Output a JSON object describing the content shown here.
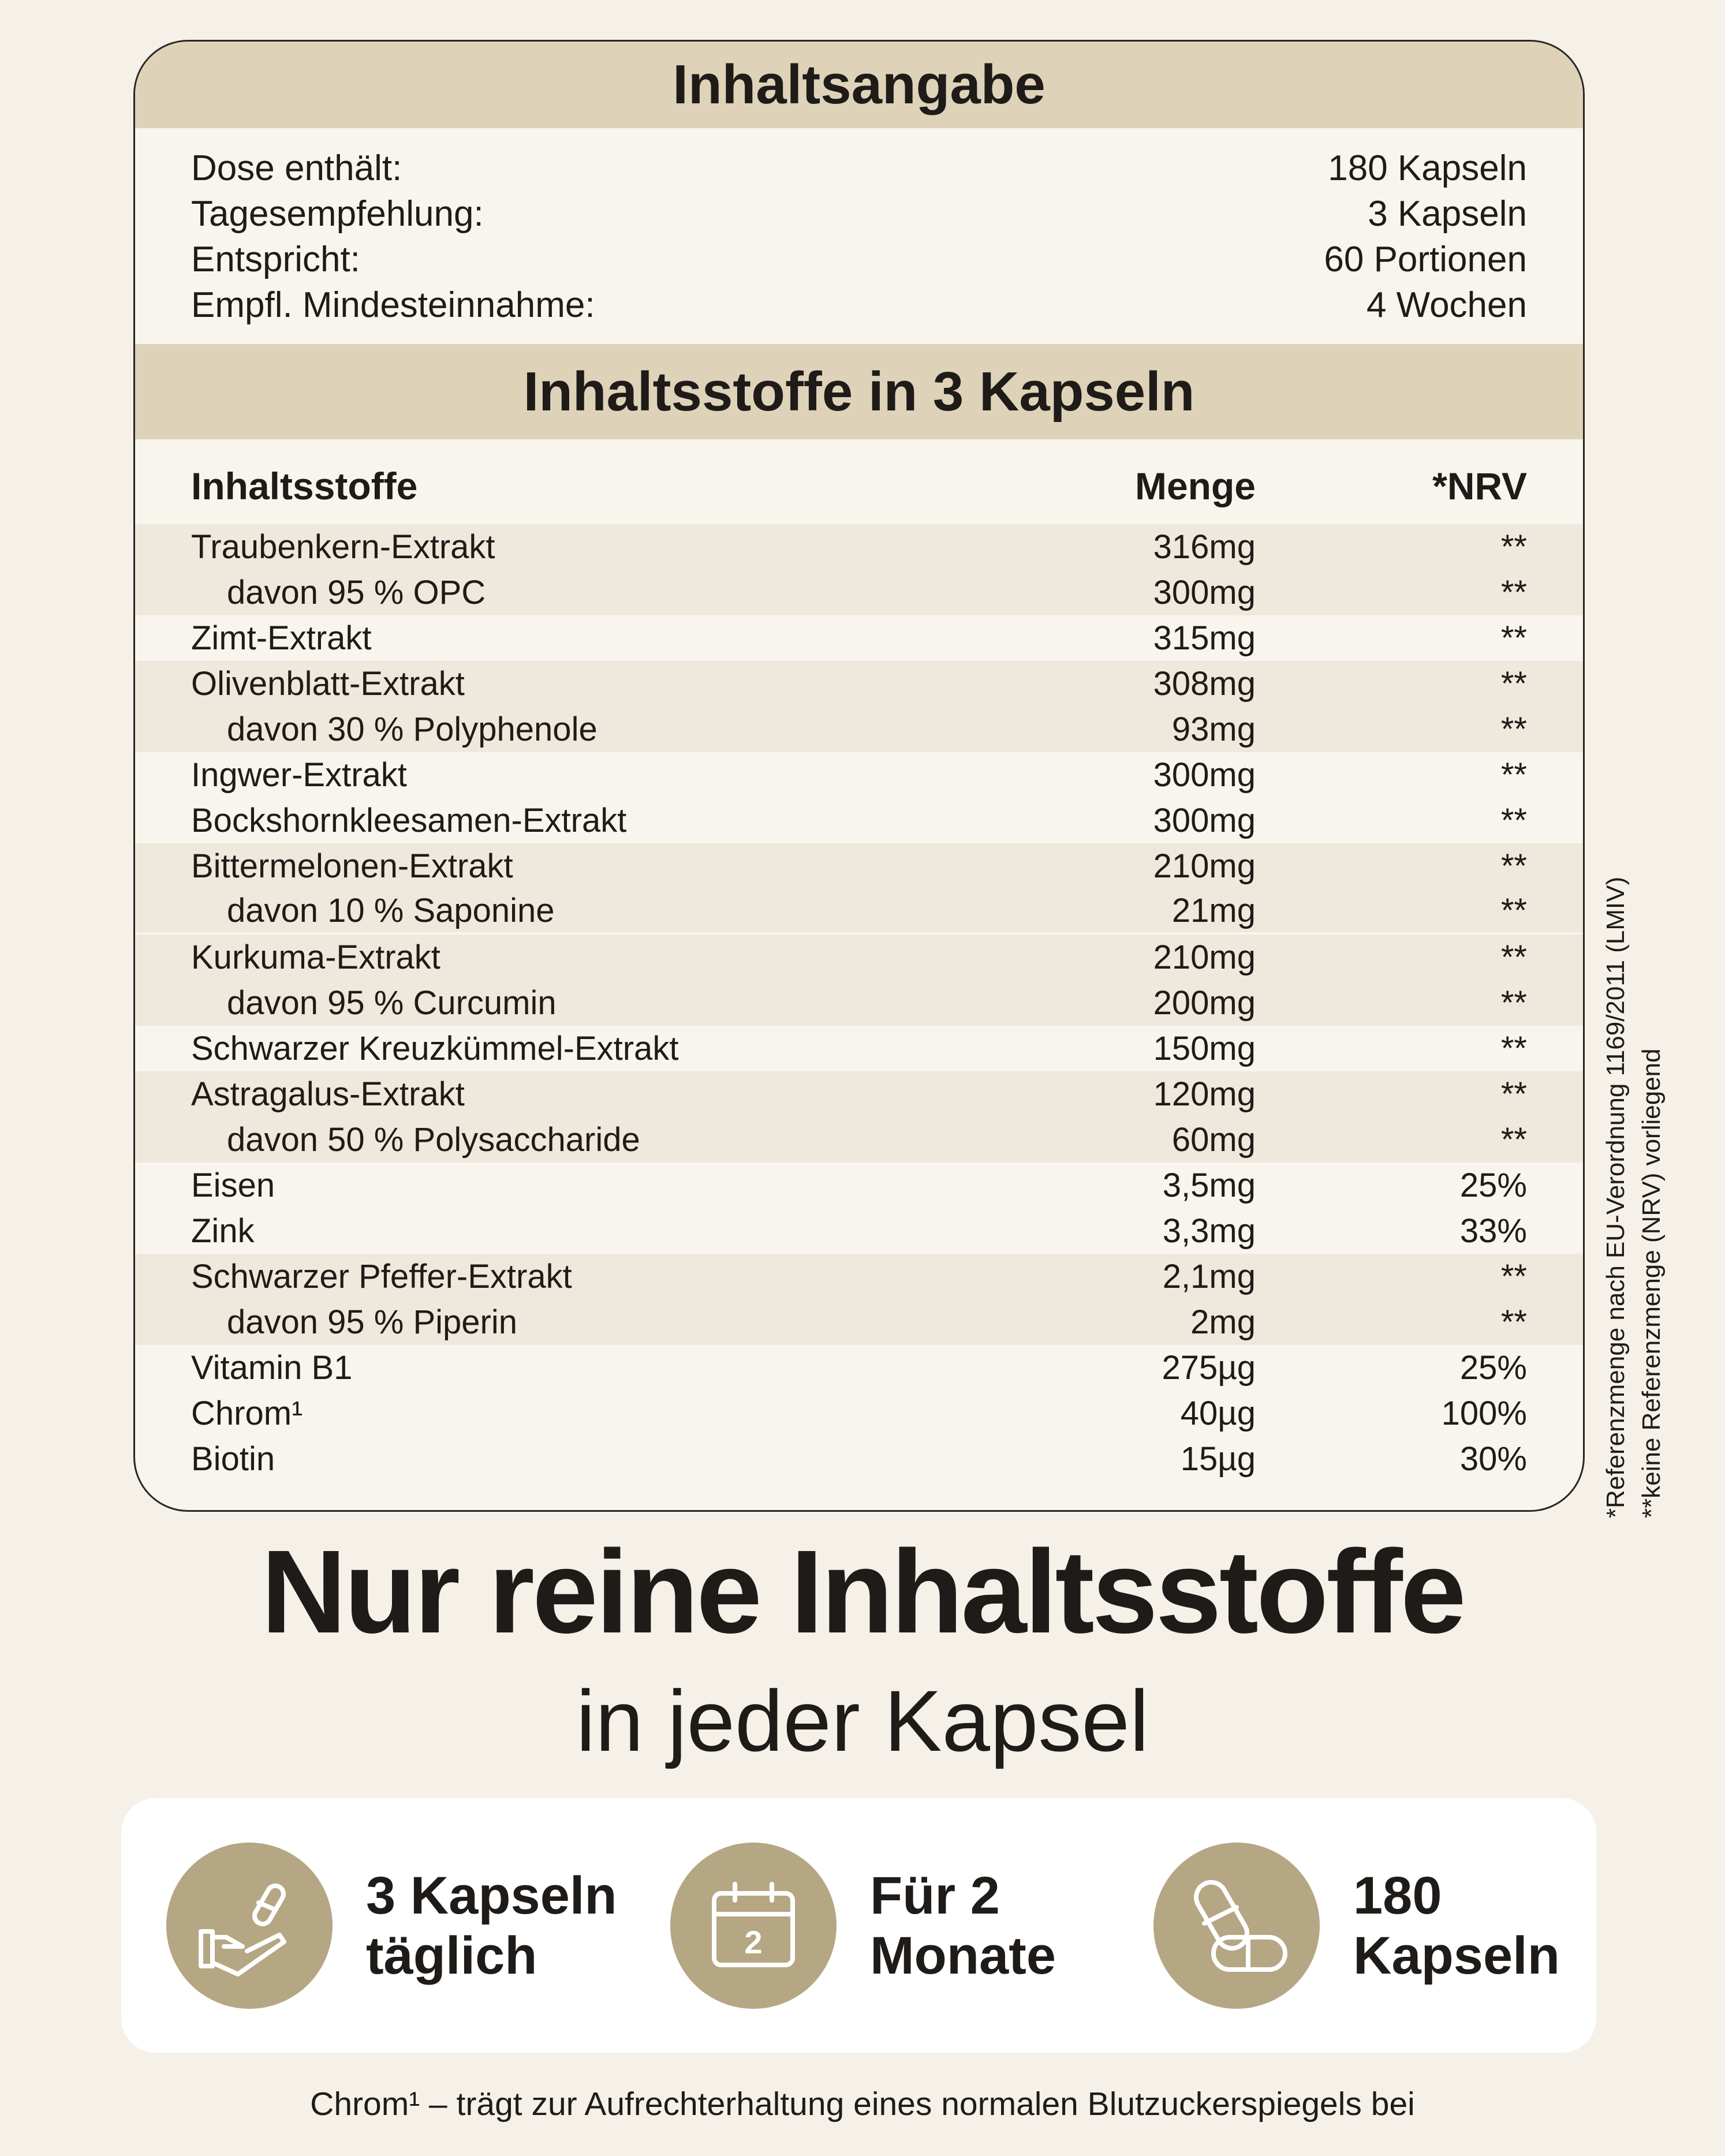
{
  "header": {
    "title": "Inhaltsangabe"
  },
  "info": [
    {
      "label": "Dose enthält:",
      "value": "180 Kapseln"
    },
    {
      "label": "Tagesempfehlung:",
      "value": "3 Kapseln"
    },
    {
      "label": "Entspricht:",
      "value": "60 Portionen"
    },
    {
      "label": "Empfl. Mindesteinnahme:",
      "value": "4 Wochen"
    }
  ],
  "section": {
    "title": "Inhaltsstoffe in 3 Kapseln"
  },
  "table": {
    "headers": {
      "name": "Inhaltsstoffe",
      "amount": "Menge",
      "nrv": "*NRV"
    },
    "rows": [
      {
        "name": "Traubenkern-Extrakt",
        "amount": "316mg",
        "nrv": "**",
        "sub": false,
        "shade": true
      },
      {
        "name": "davon 95 % OPC",
        "amount": "300mg",
        "nrv": "**",
        "sub": true,
        "shade": true
      },
      {
        "name": "Zimt-Extrakt",
        "amount": "315mg",
        "nrv": "**",
        "sub": false,
        "shade": false
      },
      {
        "name": "Olivenblatt-Extrakt",
        "amount": "308mg",
        "nrv": "**",
        "sub": false,
        "shade": true
      },
      {
        "name": "davon 30 % Polyphenole",
        "amount": "93mg",
        "nrv": "**",
        "sub": true,
        "shade": true
      },
      {
        "name": "Ingwer-Extrakt",
        "amount": "300mg",
        "nrv": "**",
        "sub": false,
        "shade": false
      },
      {
        "name": "Bockshornkleesamen-Extrakt",
        "amount": "300mg",
        "nrv": "**",
        "sub": false,
        "shade": false
      },
      {
        "name": "Bittermelonen-Extrakt",
        "amount": "210mg",
        "nrv": "**",
        "sub": false,
        "shade": true
      },
      {
        "name": "davon 10 % Saponine",
        "amount": "21mg",
        "nrv": "**",
        "sub": true,
        "shade": true
      },
      {
        "name": "Kurkuma-Extrakt",
        "amount": "210mg",
        "nrv": "**",
        "sub": false,
        "shade": true
      },
      {
        "name": "davon 95 % Curcumin",
        "amount": "200mg",
        "nrv": "**",
        "sub": true,
        "shade": true
      },
      {
        "name": "Schwarzer Kreuzkümmel-Extrakt",
        "amount": "150mg",
        "nrv": "**",
        "sub": false,
        "shade": false
      },
      {
        "name": "Astragalus-Extrakt",
        "amount": "120mg",
        "nrv": "**",
        "sub": false,
        "shade": true
      },
      {
        "name": "davon 50 % Polysaccharide",
        "amount": "60mg",
        "nrv": "**",
        "sub": true,
        "shade": true
      },
      {
        "name": "Eisen",
        "amount": "3,5mg",
        "nrv": "25%",
        "sub": false,
        "shade": false
      },
      {
        "name": "Zink",
        "amount": "3,3mg",
        "nrv": "33%",
        "sub": false,
        "shade": false
      },
      {
        "name": "Schwarzer Pfeffer-Extrakt",
        "amount": "2,1mg",
        "nrv": "**",
        "sub": false,
        "shade": true
      },
      {
        "name": "davon 95 % Piperin",
        "amount": "2mg",
        "nrv": "**",
        "sub": true,
        "shade": true
      },
      {
        "name": "Vitamin B1",
        "amount": "275µg",
        "nrv": "25%",
        "sub": false,
        "shade": false
      },
      {
        "name": "Chrom¹",
        "amount": "40µg",
        "nrv": "100%",
        "sub": false,
        "shade": false
      },
      {
        "name": "Biotin",
        "amount": "15µg",
        "nrv": "30%",
        "sub": false,
        "shade": false
      }
    ]
  },
  "footnotes": {
    "nrv": "*Referenzmenge nach EU-Verordnung 1169/2011 (LMIV)",
    "none": "**keine Referenzmenge (NRV) vorliegend"
  },
  "headline": "Nur reine Inhaltsstoffe",
  "subline": "in jeder Kapsel",
  "features": [
    {
      "icon": "hand-capsule-icon",
      "line1": "3 Kapseln",
      "line2": "täglich"
    },
    {
      "icon": "calendar-icon",
      "line1": "Für 2",
      "line2": "Monate",
      "calendar_day": "2"
    },
    {
      "icon": "capsules-icon",
      "line1": "180",
      "line2": "Kapseln"
    }
  ],
  "footer": "Chrom¹ – trägt zur Aufrechterhaltung eines normalen Blutzuckerspiegels bei",
  "colors": {
    "background": "#f5f1e9",
    "band": "#ded3b9",
    "row_shade": "#efe8dc",
    "icon_circle": "#b5a684",
    "text": "#1e1b18"
  }
}
